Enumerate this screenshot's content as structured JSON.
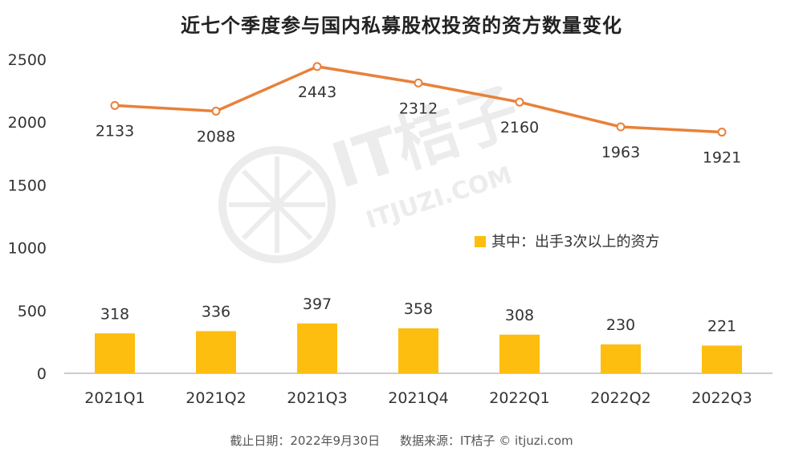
{
  "title": "近七个季度参与国内私募股权投资的资方数量变化",
  "footer": {
    "date": "截止日期：2022年9月30日",
    "source": "数据来源：IT桔子 © itjuzi.com"
  },
  "watermark": {
    "brand": "IT桔子",
    "url": "ITJUZI.COM"
  },
  "colors": {
    "line": "#E8813A",
    "bar": "#FDBE0F",
    "axis": "#BBBBBB"
  },
  "chart_data": {
    "type": "bar+line",
    "categories": [
      "2021Q1",
      "2021Q2",
      "2021Q3",
      "2021Q4",
      "2022Q1",
      "2022Q2",
      "2022Q3"
    ],
    "series": [
      {
        "type": "line",
        "values": [
          2133,
          2088,
          2443,
          2312,
          2160,
          1963,
          1921
        ]
      },
      {
        "type": "bar",
        "name": "其中：出手3次以上的资方",
        "values": [
          318,
          336,
          397,
          358,
          308,
          230,
          221
        ]
      }
    ],
    "yticks": [
      "0",
      "500",
      "1000",
      "1500",
      "2000",
      "2500"
    ],
    "ylim": [
      0,
      2500
    ],
    "grid": false,
    "legend_position": "center-right"
  }
}
